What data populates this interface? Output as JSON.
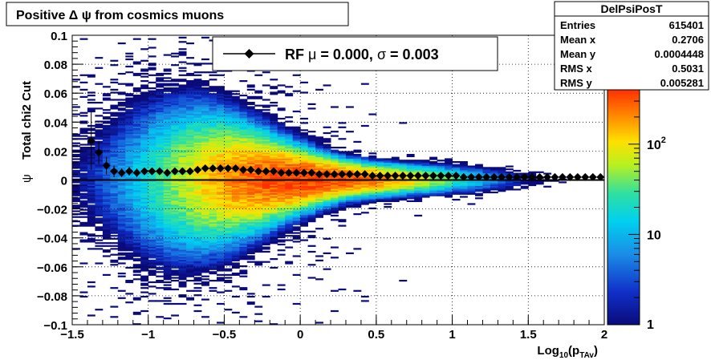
{
  "chart_data": {
    "type": "heatmap",
    "title": "Positive Δ ψ from cosmics muons",
    "xlabel": "Log",
    "xlabel_sub": "10",
    "xlabel_tail": "(p",
    "xlabel_tail_sub": "TAv",
    "xlabel_close": ")",
    "ylabel": "Total chi2 Cut",
    "ylabel_symbol": "ψ",
    "xlim": [
      -1.5,
      2.0
    ],
    "ylim": [
      -0.1,
      0.1
    ],
    "x_ticks": [
      -1.5,
      -1,
      -0.5,
      0,
      0.5,
      1,
      1.5,
      2
    ],
    "x_tick_labels": [
      "−1.5",
      "−1",
      "−0.5",
      "0",
      "0.5",
      "1",
      "1.5",
      "2"
    ],
    "y_ticks": [
      -0.1,
      -0.08,
      -0.06,
      -0.04,
      -0.02,
      0,
      0.02,
      0.04,
      0.06,
      0.08,
      0.1
    ],
    "y_tick_labels": [
      "−0.1",
      "−0.08",
      "−0.06",
      "−0.04",
      "−0.02",
      "0",
      "0.02",
      "0.04",
      "0.06",
      "0.08",
      "0.1"
    ],
    "grid": true,
    "colorbar": {
      "scale": "log",
      "range": [
        1,
        400
      ],
      "labels": [
        {
          "value": 1,
          "text": "1"
        },
        {
          "value": 10,
          "text": "10"
        },
        {
          "value": 100,
          "text": "10",
          "exp": "2"
        }
      ]
    },
    "stats": {
      "title": "DelPsiPosT",
      "rows": [
        {
          "label": "Entries",
          "value": "615401"
        },
        {
          "label": "Mean x",
          "value": "0.2706"
        },
        {
          "label": "Mean y",
          "value": "0.0004448"
        },
        {
          "label": "RMS x",
          "value": "0.5031"
        },
        {
          "label": "RMS y",
          "value": "0.005281"
        }
      ]
    },
    "legend": {
      "position": "top-center",
      "text_prefix": "RF ",
      "mu_symbol": "μ",
      "mu_text": " =  0.000, ",
      "sigma_symbol": "σ",
      "sigma_text": " =   0.003"
    },
    "profile_series": {
      "name": "RF",
      "x": [
        -1.375,
        -1.325,
        -1.275,
        -1.225,
        -1.175,
        -1.125,
        -1.075,
        -1.025,
        -0.975,
        -0.925,
        -0.875,
        -0.825,
        -0.775,
        -0.725,
        -0.675,
        -0.625,
        -0.575,
        -0.525,
        -0.475,
        -0.425,
        -0.375,
        -0.325,
        -0.275,
        -0.225,
        -0.175,
        -0.125,
        -0.075,
        -0.025,
        0.025,
        0.075,
        0.125,
        0.175,
        0.225,
        0.275,
        0.325,
        0.375,
        0.425,
        0.475,
        0.525,
        0.575,
        0.625,
        0.675,
        0.725,
        0.775,
        0.825,
        0.875,
        0.925,
        0.975,
        1.025,
        1.075,
        1.125,
        1.175,
        1.225,
        1.275,
        1.325,
        1.375,
        1.425,
        1.475,
        1.525,
        1.575,
        1.625,
        1.675,
        1.725,
        1.775,
        1.825,
        1.875,
        1.925,
        1.975
      ],
      "y": [
        0.027,
        0.019,
        0.01,
        0.006,
        0.005,
        0.006,
        0.005,
        0.006,
        0.006,
        0.006,
        0.005,
        0.006,
        0.006,
        0.006,
        0.007,
        0.008,
        0.008,
        0.008,
        0.008,
        0.008,
        0.007,
        0.007,
        0.006,
        0.006,
        0.006,
        0.005,
        0.005,
        0.005,
        0.005,
        0.005,
        0.004,
        0.004,
        0.004,
        0.004,
        0.004,
        0.004,
        0.004,
        0.003,
        0.003,
        0.003,
        0.003,
        0.003,
        0.003,
        0.003,
        0.003,
        0.003,
        0.003,
        0.003,
        0.003,
        0.002,
        0.002,
        0.002,
        0.002,
        0.002,
        0.002,
        0.002,
        0.002,
        0.002,
        0.002,
        0.002,
        0.002,
        0.002,
        0.002,
        0.002,
        0.002,
        0.002,
        0.002,
        0.002
      ],
      "err": [
        0.02,
        0.008,
        0.006,
        0.004,
        0.003,
        0.003,
        0.003,
        0.002,
        0.002,
        0.002,
        0.002,
        0.002,
        0.002,
        0.002,
        0.001,
        0.001,
        0.001,
        0.001,
        0.001,
        0.001,
        0.001,
        0.001,
        0.001,
        0.001,
        0.001,
        0.001,
        0.001,
        0.001,
        0.001,
        0.001,
        0.001,
        0.001,
        0.001,
        0.001,
        0.001,
        0.001,
        0.001,
        0.001,
        0.001,
        0.001,
        0.001,
        0.001,
        0.001,
        0.001,
        0.001,
        0.001,
        0.001,
        0.001,
        0.001,
        0.001,
        0.001,
        0.001,
        0.001,
        0.001,
        0.001,
        0.001,
        0.001,
        0.001,
        0.001,
        0.001,
        0.001,
        0.001,
        0.001,
        0.001,
        0.001,
        0.001,
        0.001,
        0.001
      ]
    },
    "fit_line": {
      "y": 0.0
    }
  }
}
